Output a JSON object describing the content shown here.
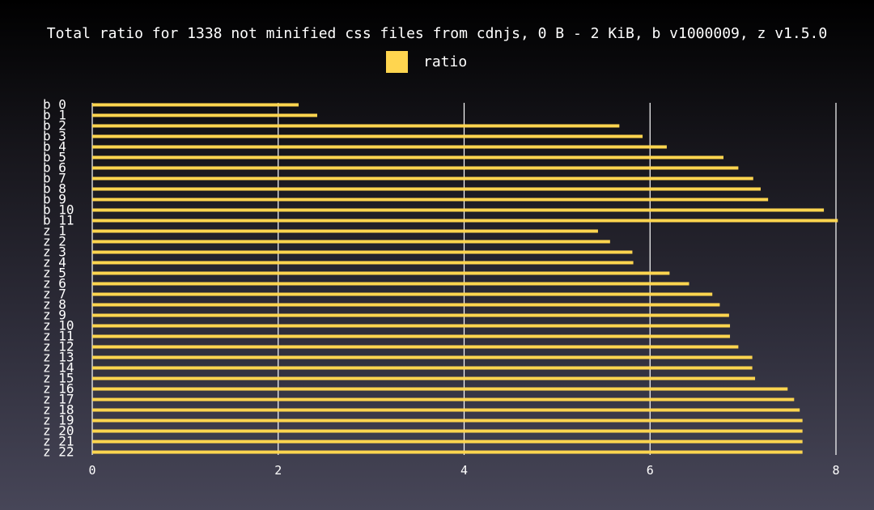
{
  "chart_data": {
    "type": "bar",
    "orientation": "horizontal",
    "title": "Total ratio for 1338 not minified css files from cdnjs, 0 B - 2 KiB, b v1000009, z v1.5.0",
    "legend_position": "top-center",
    "grid": true,
    "xlim": [
      0,
      8
    ],
    "x_ticks": [
      "0",
      "2",
      "4",
      "6",
      "8"
    ],
    "categories": [
      "b  0",
      "b  1",
      "b  2",
      "b  3",
      "b  4",
      "b  5",
      "b  6",
      "b  7",
      "b  8",
      "b  9",
      "b 10",
      "b 11",
      "z  1",
      "z  2",
      "z  3",
      "z  4",
      "z  5",
      "z  6",
      "z  7",
      "z  8",
      "z  9",
      "z 10",
      "z 11",
      "z 12",
      "z 13",
      "z 14",
      "z 15",
      "z 16",
      "z 17",
      "z 18",
      "z 19",
      "z 20",
      "z 21",
      "z 22"
    ],
    "series": [
      {
        "name": "ratio",
        "color": "#ffd54f",
        "values": [
          2.22,
          2.42,
          5.67,
          5.92,
          6.18,
          6.79,
          6.95,
          7.11,
          7.19,
          7.27,
          7.87,
          8.02,
          5.44,
          5.57,
          5.81,
          5.82,
          6.21,
          6.42,
          6.67,
          6.75,
          6.85,
          6.86,
          6.86,
          6.95,
          7.1,
          7.1,
          7.13,
          7.48,
          7.55,
          7.61,
          7.64,
          7.64,
          7.64,
          7.64
        ]
      }
    ]
  }
}
